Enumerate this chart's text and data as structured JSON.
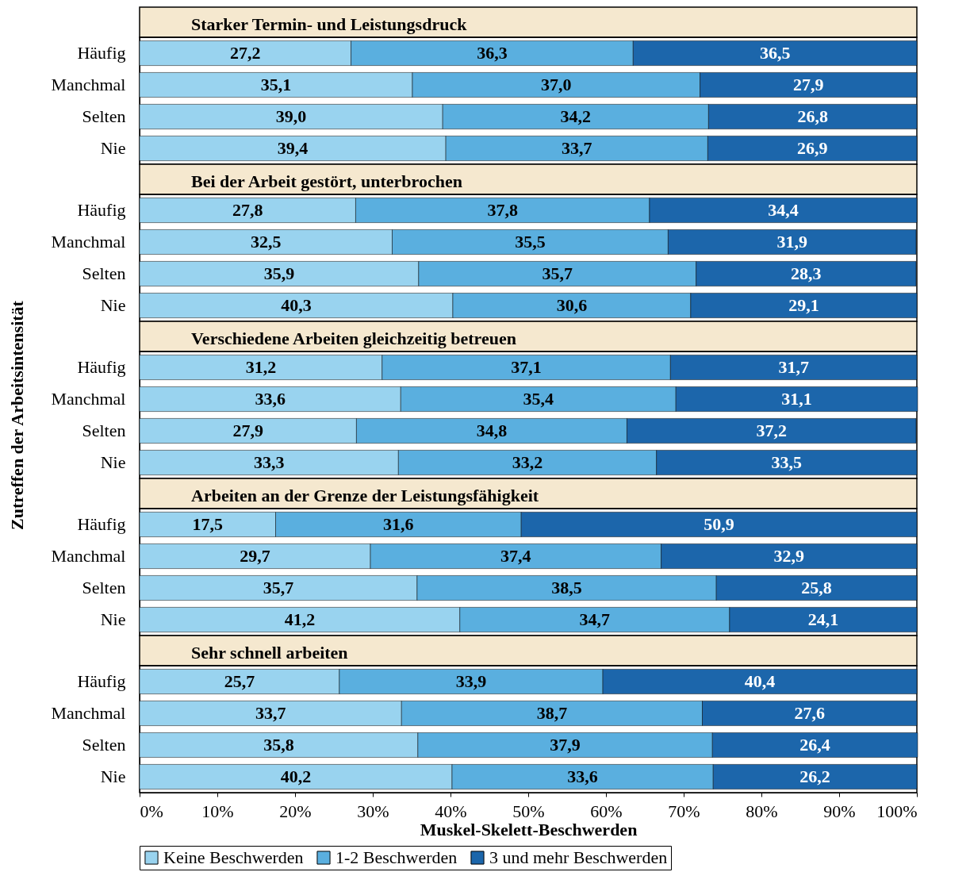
{
  "chart_data": [
    {
      "type": "bar",
      "orientation": "horizontal",
      "stacked": true,
      "title": "Starker Termin- und Leistungsdruck",
      "categories": [
        "Häufig",
        "Manchmal",
        "Selten",
        "Nie"
      ],
      "xlim": [
        0,
        100
      ],
      "tick_labels": "y",
      "series": [
        {
          "color": "#99d3ef",
          "values": [
            27.2,
            35.1,
            39.0,
            39.4
          ],
          "value_labels": [
            "27,2",
            "35,1",
            "39,0",
            "39,4"
          ]
        },
        {
          "color": "#5aafdf",
          "values": [
            36.3,
            37.0,
            34.2,
            33.7
          ],
          "value_labels": [
            "36,3",
            "37,0",
            "34,2",
            "33,7"
          ]
        },
        {
          "color": "#1c66ab",
          "values": [
            36.5,
            27.9,
            26.8,
            26.9
          ],
          "value_labels": [
            "36,5",
            "27,9",
            "26,8",
            "26,9"
          ]
        }
      ]
    },
    {
      "type": "bar",
      "orientation": "horizontal",
      "stacked": true,
      "title": "Bei der Arbeit gestört, unterbrochen",
      "categories": [
        "Häufig",
        "Manchmal",
        "Selten",
        "Nie"
      ],
      "xlim": [
        0,
        100
      ],
      "tick_labels": "y",
      "series": [
        {
          "color": "#99d3ef",
          "values": [
            27.8,
            32.5,
            35.9,
            40.3
          ],
          "value_labels": [
            "27,8",
            "32,5",
            "35,9",
            "40,3"
          ]
        },
        {
          "color": "#5aafdf",
          "values": [
            37.8,
            35.5,
            35.7,
            30.6
          ],
          "value_labels": [
            "37,8",
            "35,5",
            "35,7",
            "30,6"
          ]
        },
        {
          "color": "#1c66ab",
          "values": [
            34.4,
            31.9,
            28.3,
            29.1
          ],
          "value_labels": [
            "34,4",
            "31,9",
            "28,3",
            "29,1"
          ]
        }
      ]
    },
    {
      "type": "bar",
      "orientation": "horizontal",
      "stacked": true,
      "title": "Verschiedene Arbeiten gleichzeitig betreuen",
      "ylabel": "Zutreffen der Arbeitsintensität",
      "categories": [
        "Häufig",
        "Manchmal",
        "Selten",
        "Nie"
      ],
      "xlim": [
        0,
        100
      ],
      "tick_labels": "y",
      "series": [
        {
          "color": "#99d3ef",
          "values": [
            31.2,
            33.6,
            27.9,
            33.3
          ],
          "value_labels": [
            "31,2",
            "33,6",
            "27,9",
            "33,3"
          ]
        },
        {
          "color": "#5aafdf",
          "values": [
            37.1,
            35.4,
            34.8,
            33.2
          ],
          "value_labels": [
            "37,1",
            "35,4",
            "34,8",
            "33,2"
          ]
        },
        {
          "color": "#1c66ab",
          "values": [
            31.7,
            31.1,
            37.2,
            33.5
          ],
          "value_labels": [
            "31,7",
            "31,1",
            "37,2",
            "33,5"
          ]
        }
      ]
    },
    {
      "type": "bar",
      "orientation": "horizontal",
      "stacked": true,
      "title": "Arbeiten an der Grenze der Leistungsfähigkeit",
      "categories": [
        "Häufig",
        "Manchmal",
        "Selten",
        "Nie"
      ],
      "xlim": [
        0,
        100
      ],
      "tick_labels": "y",
      "series": [
        {
          "color": "#99d3ef",
          "values": [
            17.5,
            29.7,
            35.7,
            41.2
          ],
          "value_labels": [
            "17,5",
            "29,7",
            "35,7",
            "41,2"
          ]
        },
        {
          "color": "#5aafdf",
          "values": [
            31.6,
            37.4,
            38.5,
            34.7
          ],
          "value_labels": [
            "31,6",
            "37,4",
            "38,5",
            "34,7"
          ]
        },
        {
          "color": "#1c66ab",
          "values": [
            50.9,
            32.9,
            25.8,
            24.1
          ],
          "value_labels": [
            "50,9",
            "32,9",
            "25,8",
            "24,1"
          ]
        }
      ]
    },
    {
      "type": "bar",
      "orientation": "horizontal",
      "stacked": true,
      "title": "Sehr schnell arbeiten",
      "xlabel": "Muskel-Skelett-Beschwerden",
      "categories": [
        "Häufig",
        "Manchmal",
        "Selten",
        "Nie"
      ],
      "xlim": [
        0,
        100
      ],
      "legend": "bottom",
      "xticks": [
        {
          "value": 0,
          "label": "0%"
        },
        {
          "value": 10,
          "label": "10%"
        },
        {
          "value": 20,
          "label": "20%"
        },
        {
          "value": 30,
          "label": "30%"
        },
        {
          "value": 40,
          "label": "40%"
        },
        {
          "value": 50,
          "label": "50%"
        },
        {
          "value": 60,
          "label": "60%"
        },
        {
          "value": 70,
          "label": "70%"
        },
        {
          "value": 80,
          "label": "80%"
        },
        {
          "value": 90,
          "label": "90%"
        },
        {
          "value": 100,
          "label": "100%"
        }
      ],
      "series": [
        {
          "name": "Keine Beschwerden",
          "color": "#99d3ef",
          "values": [
            25.7,
            33.7,
            35.8,
            40.2
          ],
          "value_labels": [
            "25,7",
            "33,7",
            "35,8",
            "40,2"
          ]
        },
        {
          "name": "1-2 Beschwerden",
          "color": "#5aafdf",
          "values": [
            33.9,
            38.7,
            37.9,
            33.6
          ],
          "value_labels": [
            "33,9",
            "38,7",
            "37,9",
            "33,6"
          ]
        },
        {
          "name": "3 und mehr Beschwerden",
          "color": "#1c66ab",
          "values": [
            40.4,
            27.6,
            26.4,
            26.2
          ],
          "value_labels": [
            "40,4",
            "27,6",
            "26,4",
            "26,2"
          ]
        }
      ]
    }
  ]
}
